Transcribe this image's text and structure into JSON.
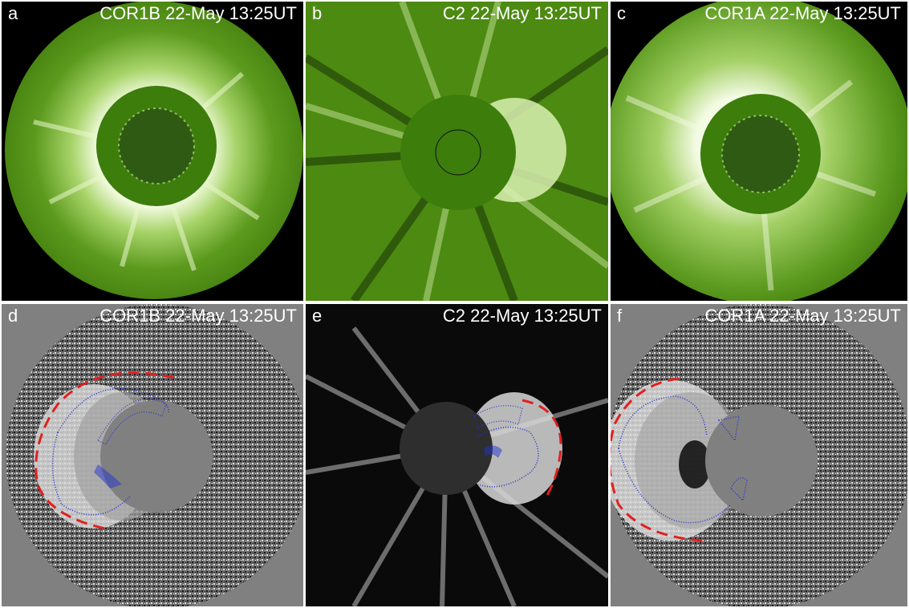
{
  "panels": [
    {
      "letter": "a",
      "title": "COR1B  22-May 13:25UT"
    },
    {
      "letter": "b",
      "title": "C2  22-May 13:25UT"
    },
    {
      "letter": "c",
      "title": "COR1A  22-May 13:25UT"
    },
    {
      "letter": "d",
      "title": "COR1B  22-May 13:25UT"
    },
    {
      "letter": "e",
      "title": "C2  22-May 13:25UT"
    },
    {
      "letter": "f",
      "title": "COR1A  22-May 13:25UT"
    }
  ],
  "colors": {
    "green_dark": "#4d8a12",
    "green_bright": "#e8f6c8",
    "occulter_green": "#3c7d0c",
    "gray_bg": "#808080",
    "occulter_dark": "#2e2e2e",
    "cme_fit_dots": "#2233cc",
    "shock_fit_dash": "#e02020"
  }
}
